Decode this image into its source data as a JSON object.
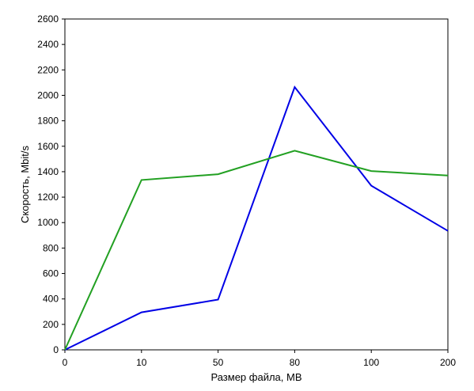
{
  "chart_data": {
    "type": "line",
    "title": "",
    "xlabel": "Размер файла, MB",
    "ylabel": "Скорость, Mbit/s",
    "categories": [
      "0",
      "10",
      "50",
      "80",
      "100",
      "200"
    ],
    "ylim": [
      0,
      2600
    ],
    "y_ticks": [
      0,
      200,
      400,
      600,
      800,
      1000,
      1200,
      1400,
      1600,
      1800,
      2000,
      2200,
      2400,
      2600
    ],
    "grid": false,
    "legend": "none",
    "series": [
      {
        "color": "#0000e6",
        "values": [
          0,
          295,
          395,
          2065,
          1290,
          935
        ]
      },
      {
        "color": "#22a022",
        "values": [
          0,
          1335,
          1380,
          1565,
          1405,
          1370
        ]
      }
    ]
  }
}
